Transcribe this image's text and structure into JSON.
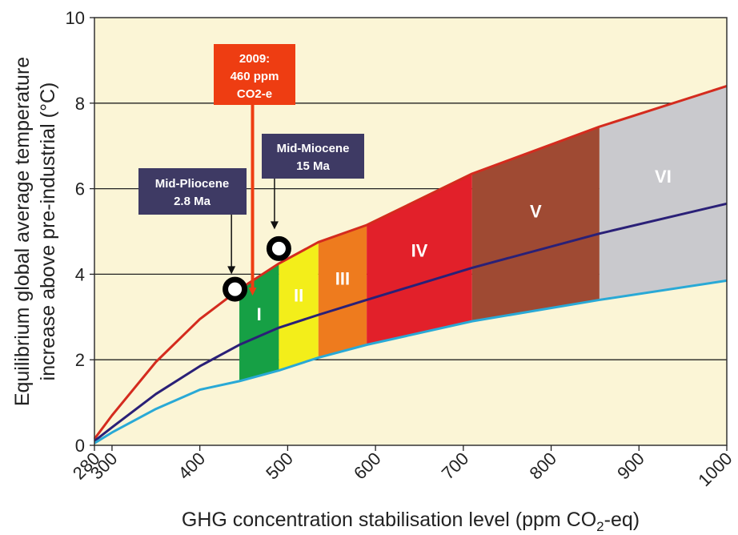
{
  "chart_data": {
    "type": "area",
    "xlabel": "GHG concentration stabilisation level (ppm CO",
    "xlabel_sub": "2",
    "xlabel_end": "-eq)",
    "ylabel_line1": "Equilibrium global average temperature",
    "ylabel_line2": "increase above pre-industrial (°C)",
    "xlim": [
      280,
      1000
    ],
    "ylim": [
      0,
      10
    ],
    "x_ticks": [
      280,
      300,
      400,
      500,
      600,
      700,
      800,
      900,
      1000
    ],
    "x_tick_labels": [
      "280",
      "300",
      "400",
      "500",
      "600",
      "700",
      "800",
      "900",
      "1000"
    ],
    "y_ticks": [
      0,
      2,
      4,
      6,
      8,
      10
    ],
    "y_tick_labels": [
      "0",
      "2",
      "4",
      "6",
      "8",
      "10"
    ],
    "grid": "horizontal",
    "series": [
      {
        "role": "upper",
        "color": "#d42b1e",
        "x": [
          280,
          300,
          350,
          400,
          445,
          490,
          535,
          590,
          710,
          855,
          1000
        ],
        "y": [
          0.15,
          0.7,
          1.95,
          2.95,
          3.65,
          4.25,
          4.75,
          5.15,
          6.35,
          7.45,
          8.4
        ]
      },
      {
        "role": "best estimate",
        "color": "#2a2077",
        "x": [
          280,
          300,
          350,
          400,
          445,
          490,
          535,
          590,
          710,
          855,
          1000
        ],
        "y": [
          0.1,
          0.42,
          1.2,
          1.85,
          2.35,
          2.75,
          3.05,
          3.4,
          4.15,
          4.95,
          5.65
        ]
      },
      {
        "role": "lower",
        "color": "#29a9d6",
        "x": [
          280,
          300,
          350,
          400,
          445,
          490,
          535,
          590,
          710,
          855,
          1000
        ],
        "y": [
          0.05,
          0.3,
          0.85,
          1.3,
          1.5,
          1.75,
          2.05,
          2.35,
          2.9,
          3.4,
          3.85
        ]
      }
    ],
    "categories": [
      {
        "label": "I",
        "x_start": 445,
        "x_end": 490,
        "color": "#16a045"
      },
      {
        "label": "II",
        "x_start": 490,
        "x_end": 535,
        "color": "#f3ee1a"
      },
      {
        "label": "III",
        "x_start": 535,
        "x_end": 590,
        "color": "#ee7b1e"
      },
      {
        "label": "IV",
        "x_start": 590,
        "x_end": 710,
        "color": "#e2202a"
      },
      {
        "label": "V",
        "x_start": 710,
        "x_end": 855,
        "color": "#9f4a33"
      },
      {
        "label": "VI",
        "x_start": 855,
        "x_end": 1000,
        "color": "#c9c9cd"
      }
    ],
    "markers": [
      {
        "name": "mid-pliocene",
        "x": 440,
        "y": 3.65
      },
      {
        "name": "mid-miocene",
        "x": 490,
        "y": 4.6
      }
    ],
    "annotations": {
      "current": {
        "line1": "2009:",
        "line2": "460 ppm",
        "line3": "CO2-e",
        "x": 460,
        "fill": "#ee3d12",
        "text_color": "#ffffff"
      },
      "pliocene": {
        "line1": "Mid-Pliocene",
        "line2": "2.8 Ma",
        "fill": "#3e3a64",
        "text_color": "#ffffff"
      },
      "miocene": {
        "line1": "Mid-Miocene",
        "line2": "15 Ma",
        "fill": "#3e3a64",
        "text_color": "#ffffff"
      }
    },
    "background_color": "#fbf5d6"
  }
}
